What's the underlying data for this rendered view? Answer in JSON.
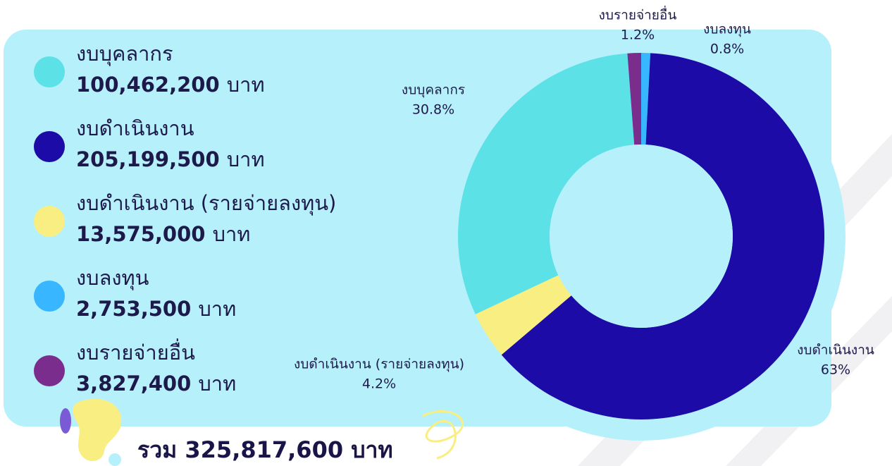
{
  "chart_data": {
    "type": "pie",
    "categories": [
      "งบลงทุน",
      "งบดำเนินงาน",
      "งบดำเนินงาน (รายจ่ายลงทุน)",
      "งบบุคลากร",
      "งบรายจ่ายอื่น"
    ],
    "values": [
      0.8,
      63,
      4.2,
      30.8,
      1.2
    ],
    "value_labels": [
      "0.8%",
      "63%",
      "4.2%",
      "30.8%",
      "1.2%"
    ],
    "colors": [
      "#38b6ff",
      "#1c0ba6",
      "#f8ee82",
      "#5ce1e6",
      "#7b2d8e"
    ],
    "donut": true
  },
  "legend": [
    {
      "name": "งบบุคลากร",
      "amount": 100462200,
      "amount_label": "100,462,200",
      "unit": "บาท",
      "color": "#5ce1e6"
    },
    {
      "name": "งบดำเนินงาน",
      "amount": 205199500,
      "amount_label": "205,199,500",
      "unit": "บาท",
      "color": "#1c0ba6"
    },
    {
      "name": "งบดำเนินงาน (รายจ่ายลงทุน)",
      "amount": 13575000,
      "amount_label": "13,575,000",
      "unit": "บาท",
      "color": "#f8ee82"
    },
    {
      "name": "งบลงทุน",
      "amount": 2753500,
      "amount_label": "2,753,500",
      "unit": "บาท",
      "color": "#38b6ff"
    },
    {
      "name": "งบรายจ่ายอื่น",
      "amount": 3827400,
      "amount_label": "3,827,400",
      "unit": "บาท",
      "color": "#7b2d8e"
    }
  ],
  "total": {
    "prefix": "รวม",
    "amount": 325817600,
    "amount_label": "325,817,600",
    "unit": "บาท"
  }
}
